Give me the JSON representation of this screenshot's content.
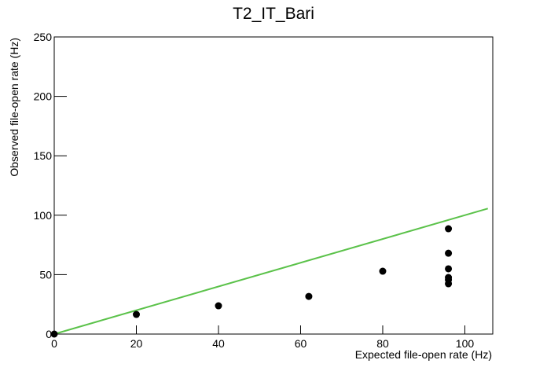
{
  "chart_data": {
    "type": "scatter",
    "title": "T2_IT_Bari",
    "x_label": "Expected file-open rate (Hz)",
    "y_label": "Observed file-open rate (Hz)",
    "series": [
      {
        "name": "T2_IT_Bari",
        "color": "#000000",
        "x": [
          0,
          20,
          40,
          62,
          80,
          96,
          96,
          96,
          96,
          96,
          96
        ],
        "values": [
          0,
          16.5,
          23.8,
          31.7,
          52.9,
          88.6,
          68,
          54.9,
          47.6,
          45.6,
          42.3
        ]
      }
    ],
    "reference_line": {
      "color": "#5bc24a",
      "x": [
        0,
        105.6
      ],
      "values": [
        0,
        105.6
      ]
    },
    "xlim": [
      0,
      106.8
    ],
    "ylim": [
      0,
      250
    ],
    "xticks": [
      0,
      20,
      40,
      60,
      80,
      100
    ],
    "yticks": [
      0,
      50,
      100,
      150,
      200,
      250
    ]
  }
}
